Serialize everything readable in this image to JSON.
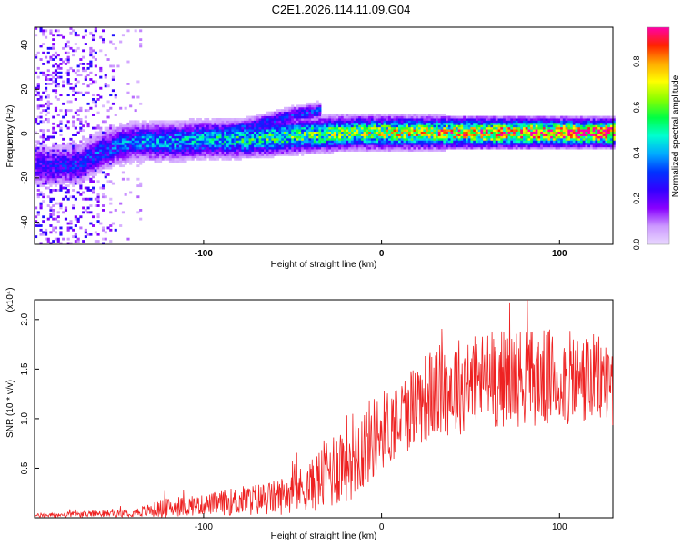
{
  "title": "C2E1.2026.114.11.09.G04",
  "chart_data": [
    {
      "type": "heatmap",
      "name": "spectrogram",
      "xlabel": "Height of straight line (km)",
      "ylabel": "Frequency (Hz)",
      "xlim": [
        -195,
        130
      ],
      "ylim": [
        -50,
        48
      ],
      "xticks": [
        -100,
        0,
        100
      ],
      "yticks": [
        -40,
        -20,
        0,
        20,
        40
      ],
      "ridge": [
        {
          "x": -180,
          "y": -15
        },
        {
          "x": -170,
          "y": -14
        },
        {
          "x": -160,
          "y": -9
        },
        {
          "x": -150,
          "y": -6
        },
        {
          "x": -140,
          "y": -4
        },
        {
          "x": -120,
          "y": -4
        },
        {
          "x": -100,
          "y": -3
        },
        {
          "x": -80,
          "y": -3
        },
        {
          "x": -60,
          "y": -2
        },
        {
          "x": -40,
          "y": -1
        },
        {
          "x": -20,
          "y": 0
        },
        {
          "x": 0,
          "y": 0
        },
        {
          "x": 40,
          "y": 0
        },
        {
          "x": 80,
          "y": 0
        },
        {
          "x": 130,
          "y": 0
        }
      ],
      "branch": [
        {
          "x": -100,
          "y": -2
        },
        {
          "x": -75,
          "y": 3
        },
        {
          "x": -50,
          "y": 8
        },
        {
          "x": -35,
          "y": 10
        }
      ],
      "colorbar": {
        "label": "Normalized spectral amplitude",
        "range": [
          0.0,
          0.95
        ],
        "ticks": [
          "0.0",
          "0.2",
          "0.4",
          "0.6",
          "0.8"
        ],
        "colors": [
          "#e9d8ff",
          "#cc99ff",
          "#8800ff",
          "#3300ff",
          "#0033ff",
          "#00aaff",
          "#00ffd0",
          "#00ff44",
          "#88ff00",
          "#ffff00",
          "#ffaa00",
          "#ff2200",
          "#ff00aa"
        ]
      }
    },
    {
      "type": "line",
      "name": "snr",
      "xlabel": "Height of straight line (km)",
      "ylabel": "SNR (10 * v/v)",
      "yscale_label": "(x10⁴)",
      "xlim": [
        -195,
        130
      ],
      "ylim": [
        0,
        2.2
      ],
      "xticks": [
        -100,
        0,
        100
      ],
      "yticks": [
        "0.5",
        "1.0",
        "1.5",
        "2.0"
      ],
      "color": "#ee2222",
      "envelope": [
        {
          "x": -195,
          "mean": 0.02,
          "amp": 0.02
        },
        {
          "x": -140,
          "mean": 0.05,
          "amp": 0.04
        },
        {
          "x": -120,
          "mean": 0.1,
          "amp": 0.1
        },
        {
          "x": -100,
          "mean": 0.13,
          "amp": 0.1
        },
        {
          "x": -80,
          "mean": 0.17,
          "amp": 0.15
        },
        {
          "x": -60,
          "mean": 0.2,
          "amp": 0.18
        },
        {
          "x": -40,
          "mean": 0.32,
          "amp": 0.25
        },
        {
          "x": -30,
          "mean": 0.45,
          "amp": 0.4
        },
        {
          "x": -20,
          "mean": 0.6,
          "amp": 0.45
        },
        {
          "x": -10,
          "mean": 0.72,
          "amp": 0.45
        },
        {
          "x": 0,
          "mean": 0.88,
          "amp": 0.4
        },
        {
          "x": 10,
          "mean": 1.0,
          "amp": 0.4
        },
        {
          "x": 20,
          "mean": 1.18,
          "amp": 0.45
        },
        {
          "x": 40,
          "mean": 1.32,
          "amp": 0.5
        },
        {
          "x": 60,
          "mean": 1.4,
          "amp": 0.5
        },
        {
          "x": 80,
          "mean": 1.42,
          "amp": 0.5
        },
        {
          "x": 100,
          "mean": 1.4,
          "amp": 0.5
        },
        {
          "x": 130,
          "mean": 1.38,
          "amp": 0.45
        }
      ]
    }
  ]
}
